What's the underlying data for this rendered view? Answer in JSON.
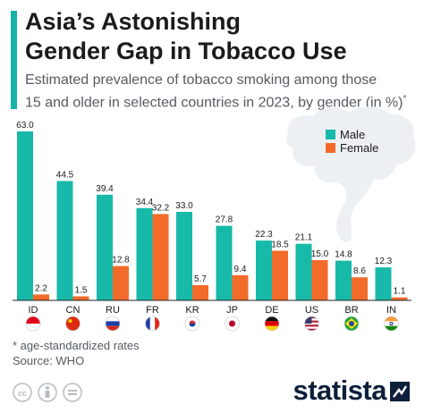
{
  "header": {
    "title_line1": "Asia’s Astonishing",
    "title_line2": "Gender Gap in Tobacco Use",
    "subtitle_line1": "Estimated prevalence of tobacco smoking among those",
    "subtitle_line2": "15 and older in selected countries in 2023, by gender (in %)",
    "subtitle_mark": "*"
  },
  "chart_data": {
    "type": "bar",
    "categories": [
      "ID",
      "CN",
      "RU",
      "FR",
      "KR",
      "JP",
      "DE",
      "US",
      "BR",
      "IN"
    ],
    "series": [
      {
        "name": "Male",
        "values": [
          63.0,
          44.5,
          39.4,
          34.4,
          33.0,
          27.8,
          22.3,
          21.1,
          14.8,
          12.3
        ]
      },
      {
        "name": "Female",
        "values": [
          2.2,
          1.5,
          12.8,
          32.2,
          5.7,
          9.4,
          18.5,
          15.0,
          8.6,
          1.1
        ]
      }
    ],
    "ylim": [
      0,
      63
    ],
    "grid": false,
    "legend_position": "top-right",
    "colors": {
      "Male": "#17b9a9",
      "Female": "#f26b2a"
    }
  },
  "flags": [
    "indonesia-flag",
    "china-flag",
    "russia-flag",
    "france-flag",
    "south-korea-flag",
    "japan-flag",
    "germany-flag",
    "usa-flag",
    "brazil-flag",
    "india-flag"
  ],
  "footer": {
    "note": "* age-standardized rates",
    "source": "Source: WHO",
    "brand": "statista",
    "license_icons": [
      "cc-icon",
      "attribution-icon",
      "no-derivatives-icon"
    ]
  },
  "colors": {
    "accent": "#16b3a6",
    "text": "#1b1b1b",
    "muted": "#555b62",
    "smoke": "#edf0f3",
    "brand": "#0d1f3a"
  }
}
